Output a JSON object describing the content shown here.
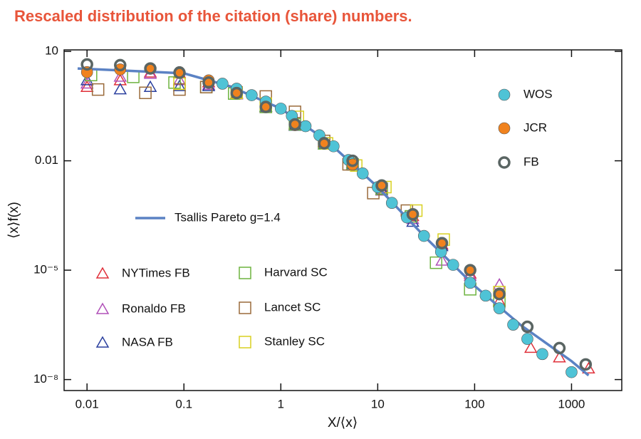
{
  "chart_data": {
    "type": "scatter",
    "title": "Rescaled distribution of the citation (share) numbers.",
    "xlabel": "X/⟨x⟩",
    "ylabel": "⟨x⟩f(x)",
    "xscale": "log",
    "yscale": "log",
    "xlim": [
      0.0058,
      3300
    ],
    "ylim": [
      5e-09,
      11
    ],
    "xticks": [
      0.01,
      0.1,
      1,
      10,
      100,
      1000
    ],
    "yticks": [
      10,
      0.01,
      {
        "value": 1e-05,
        "label": "10⁻⁵"
      },
      {
        "value": 1e-08,
        "label": "10⁻⁸"
      }
    ],
    "series": [
      {
        "name": "WOS",
        "marker": "circle",
        "color": "#4fc3d6",
        "x": [
          0.25,
          0.35,
          0.5,
          0.7,
          1,
          1.3,
          1.8,
          2.5,
          3.5,
          5,
          7,
          10,
          14,
          20,
          30,
          45,
          60,
          90,
          130,
          180,
          250,
          350,
          500,
          1000
        ],
        "values": [
          1.3,
          0.95,
          0.63,
          0.42,
          0.27,
          0.17,
          0.089,
          0.05,
          0.025,
          0.0105,
          0.0045,
          0.0019,
          0.0007,
          0.00028,
          8.7e-05,
          3.2e-05,
          1.4e-05,
          4.5e-06,
          2e-06,
          9e-07,
          3.2e-07,
          1.3e-07,
          5e-08,
          1.6e-08
        ]
      },
      {
        "name": "JCR",
        "marker": "circle",
        "color": "#f0821e",
        "x": [
          0.01,
          0.022,
          0.045,
          0.09,
          0.18,
          0.35,
          0.7,
          1.4,
          2.8,
          5.5,
          11,
          23,
          46,
          90,
          180
        ],
        "values": [
          2.7,
          3.2,
          3.4,
          2.7,
          1.6,
          0.73,
          0.3,
          0.095,
          0.031,
          0.0079,
          0.0021,
          0.00034,
          5.6e-05,
          1e-05,
          2.3e-06
        ]
      },
      {
        "name": "FB",
        "marker": "open-circle",
        "color": "#5a6563",
        "x": [
          0.01,
          0.022,
          0.045,
          0.09,
          0.18,
          0.35,
          0.7,
          1.4,
          2.8,
          5.5,
          11,
          23,
          46,
          90,
          180,
          350,
          750,
          1400
        ],
        "values": [
          4.4,
          4.2,
          3.4,
          2.6,
          1.4,
          0.72,
          0.3,
          0.1,
          0.03,
          0.01,
          0.0021,
          0.00034,
          5.5e-05,
          1e-05,
          2.2e-06,
          2.8e-07,
          7.3e-08,
          2.6e-08
        ]
      },
      {
        "name": "Tsallis Pareto g=1.4",
        "marker": "line",
        "color": "#5b82c4",
        "x": [
          0.008,
          0.1,
          0.3,
          1,
          3,
          10,
          30,
          100,
          300,
          1000,
          1500
        ],
        "values": [
          3.4,
          2.5,
          1.1,
          0.27,
          0.035,
          0.0019,
          8.7e-05,
          3.7e-06,
          3.1e-07,
          3.2e-08,
          1.3e-08
        ]
      },
      {
        "name": "NYTimes FB",
        "marker": "triangle",
        "color": "#e0303a",
        "x": [
          0.01,
          0.022,
          0.045,
          0.09,
          0.18,
          0.35,
          0.7,
          1.4,
          2.8,
          5.5,
          11,
          23,
          46,
          90,
          180,
          380,
          750,
          1500
        ],
        "values": [
          1.05,
          1.6,
          2.6,
          2.5,
          1.4,
          0.7,
          0.3,
          0.1,
          0.032,
          0.009,
          0.0018,
          0.0003,
          5e-05,
          8e-06,
          1.4e-06,
          7.3e-08,
          4e-08,
          2e-08
        ]
      },
      {
        "name": "Ronaldo FB",
        "marker": "triangle",
        "color": "#b050b8",
        "x": [
          0.01,
          0.022,
          0.045,
          0.09,
          0.18,
          0.35,
          0.7,
          1.4,
          2.8,
          5.5,
          11,
          23,
          46,
          90,
          180
        ],
        "values": [
          1.3,
          2.0,
          2.4,
          1.6,
          1.2,
          0.65,
          0.28,
          0.095,
          0.028,
          0.0085,
          0.0015,
          0.00025,
          1.8e-05,
          7e-06,
          4e-06
        ]
      },
      {
        "name": "NASA FB",
        "marker": "triangle",
        "color": "#2a3f9e",
        "x": [
          0.01,
          0.022,
          0.045,
          0.09,
          0.18,
          0.35,
          0.7,
          1.4,
          2.8,
          5.5,
          11,
          23,
          46
        ],
        "values": [
          1.6,
          0.9,
          1.05,
          1.1,
          1.1,
          0.68,
          0.3,
          0.09,
          0.028,
          0.008,
          0.0016,
          0.00021,
          4.5e-05
        ]
      },
      {
        "name": "Harvard SC",
        "marker": "square",
        "color": "#6db33f",
        "x": [
          0.011,
          0.03,
          0.08,
          0.17,
          0.33,
          0.7,
          1.4,
          2.8,
          5.5,
          11,
          22,
          40,
          90,
          180
        ],
        "values": [
          2.25,
          2.0,
          1.4,
          1.05,
          0.7,
          0.3,
          0.1,
          0.03,
          0.008,
          0.0017,
          0.0003,
          1.6e-05,
          3e-06,
          1.4e-06
        ]
      },
      {
        "name": "Lancet SC",
        "marker": "square",
        "color": "#9a6a3a",
        "x": [
          0.013,
          0.04,
          0.09,
          0.17,
          0.35,
          0.7,
          1.4,
          2.8,
          5,
          9,
          20
        ],
        "values": [
          0.9,
          0.73,
          0.9,
          1.05,
          0.75,
          0.58,
          0.22,
          0.035,
          0.008,
          0.0013,
          0.00043
        ]
      },
      {
        "name": "Stanley SC",
        "marker": "square",
        "color": "#d8d020",
        "x": [
          0.09,
          0.35,
          0.7,
          1.5,
          3,
          6,
          12,
          25,
          48,
          180
        ],
        "values": [
          1.3,
          0.73,
          0.37,
          0.16,
          0.03,
          0.0074,
          0.0019,
          0.00043,
          6.9e-05,
          2.5e-06
        ]
      }
    ]
  }
}
